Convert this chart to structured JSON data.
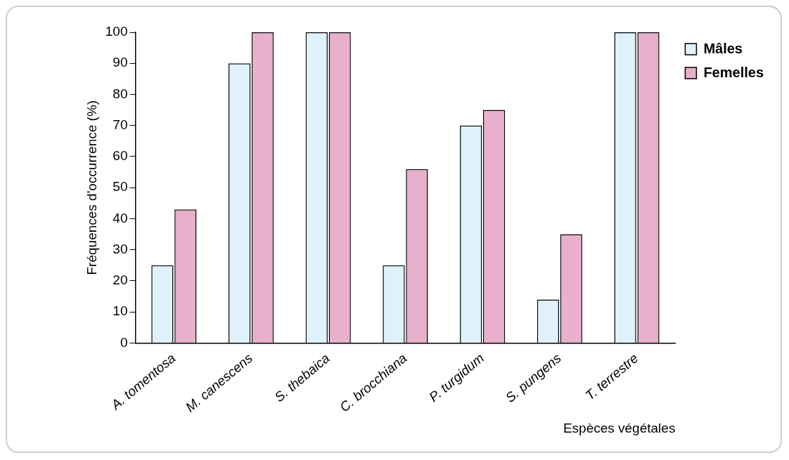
{
  "chart_data": {
    "type": "bar",
    "xlabel": "Espèces végétales",
    "ylabel": "Fréquences d'occurrence (%)",
    "categories": [
      "A. tomentosa",
      "M. canescens",
      "S. thebaica",
      "C. brocchiana",
      "P. turgidum",
      "S. pungens",
      "T. terrestre"
    ],
    "series": [
      {
        "name": "Mâles",
        "color": "#dff2fb",
        "values": [
          25,
          90,
          100,
          25,
          70,
          14,
          100
        ]
      },
      {
        "name": "Femelles",
        "color": "#e8b0cc",
        "values": [
          43,
          100,
          100,
          56,
          75,
          35,
          100
        ]
      }
    ],
    "ylim": [
      0,
      100
    ],
    "yticks": [
      0,
      10,
      20,
      30,
      40,
      50,
      60,
      70,
      80,
      90,
      100
    ],
    "grid": false,
    "legend": "top right"
  }
}
